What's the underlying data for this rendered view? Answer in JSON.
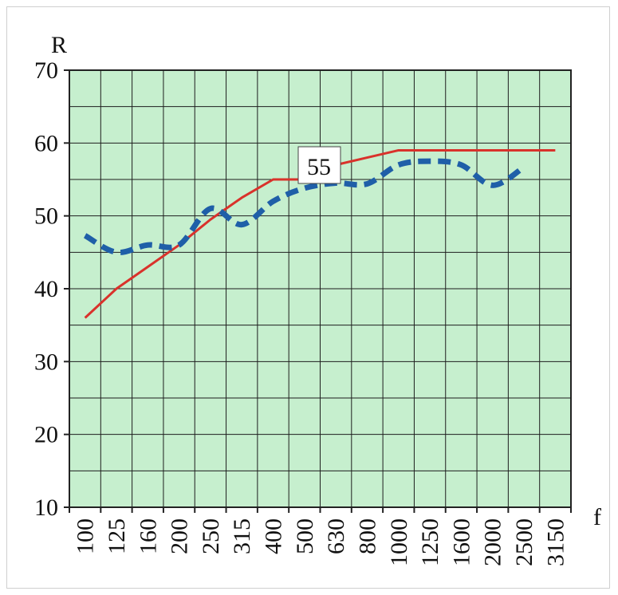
{
  "chart_data": {
    "type": "line",
    "xlabel": "f",
    "ylabel": "R",
    "categories": [
      "100",
      "125",
      "160",
      "200",
      "250",
      "315",
      "400",
      "500",
      "630",
      "800",
      "1000",
      "1250",
      "1600",
      "2000",
      "2500",
      "3150"
    ],
    "ylim": [
      10,
      70
    ],
    "yticks": [
      "10",
      "20",
      "30",
      "40",
      "50",
      "60",
      "70"
    ],
    "grid": true,
    "background_color": "#c6efce",
    "series": [
      {
        "color": "#d9322b",
        "style": "solid",
        "values": [
          36,
          40,
          43,
          46,
          49.5,
          52.5,
          55,
          55,
          57,
          58,
          59,
          59,
          59,
          59,
          59,
          59
        ]
      },
      {
        "color": "#1f5fa8",
        "style": "dashed",
        "values": [
          47.3,
          45,
          46,
          46,
          51,
          48.8,
          52,
          53.8,
          54.5,
          54.4,
          57,
          57.5,
          57,
          54.2,
          56.7,
          null
        ]
      }
    ],
    "annotation": {
      "text": "55"
    }
  }
}
